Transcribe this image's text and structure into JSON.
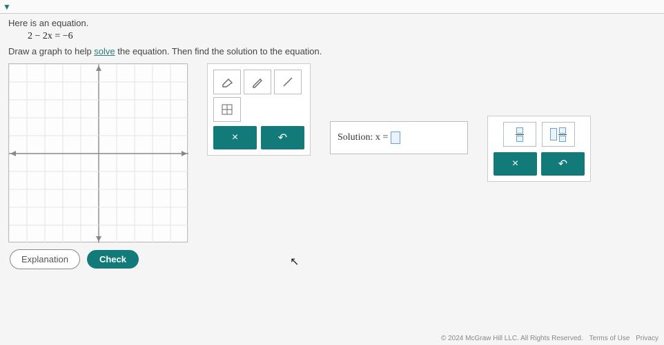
{
  "colors": {
    "teal": "#137a7a",
    "panel_border": "#cccccc",
    "slot_border": "#6aa0d0",
    "slot_fill": "#eaf3fb",
    "grid": "#e4e4e4",
    "axis": "#888888"
  },
  "top": {
    "chevron": "v"
  },
  "intro": "Here is an equation.",
  "equation": "2 − 2x = −6",
  "instruction_pre": "Draw a graph to help ",
  "instruction_link": "solve",
  "instruction_post": " the equation. Then find the solution to the equation.",
  "graph": {
    "xlim": [
      -5,
      5
    ],
    "ylim": [
      -5,
      5
    ],
    "tick_step": 1,
    "grid_color": "#e4e4e4",
    "axis_color": "#888888",
    "background": "#fdfdfd"
  },
  "tools": {
    "eraser": "eraser",
    "pencil": "pencil",
    "line": "line",
    "grid_zoom": "grid-zoom",
    "clear_label": "×",
    "reset_label": "↶"
  },
  "solution": {
    "label": "Solution: x ="
  },
  "frac_panel": {
    "clear_label": "×",
    "reset_label": "↶"
  },
  "buttons": {
    "explanation": "Explanation",
    "check": "Check"
  },
  "footer": {
    "copyright": "© 2024 McGraw Hill LLC. All Rights Reserved.",
    "terms": "Terms of Use",
    "privacy": "Privacy"
  }
}
